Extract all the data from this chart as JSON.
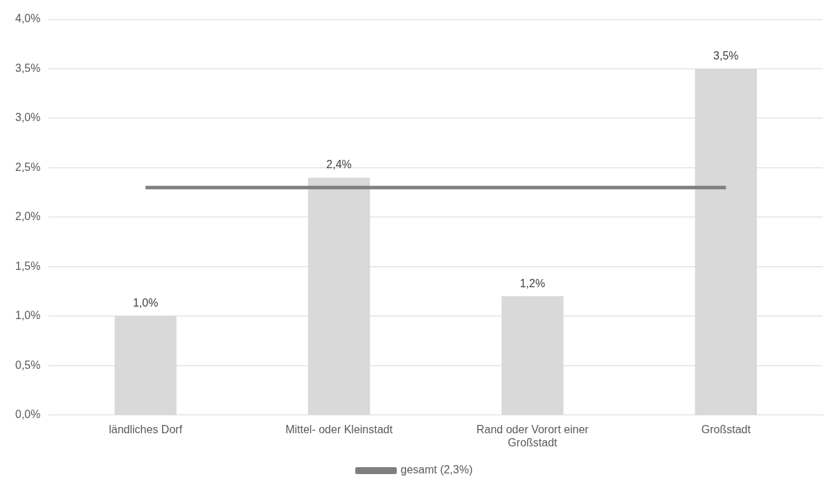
{
  "chart_data": {
    "type": "bar",
    "categories": [
      "ländliches Dorf",
      "Mittel- oder Kleinstadt",
      "Rand oder Vorort einer Großstadt",
      "Großstadt"
    ],
    "series": [
      {
        "color": "#d9d9d9",
        "values": [
          1.0,
          2.4,
          1.2,
          3.5
        ],
        "value_labels": [
          "1,0%",
          "2,4%",
          "1,2%",
          "3,5%"
        ]
      },
      {
        "type": "line",
        "name": "gesamt (2,3%)",
        "color": "#7f7f7f",
        "values": [
          2.3,
          2.3,
          2.3,
          2.3
        ]
      }
    ],
    "ylim": [
      0,
      4
    ],
    "yticks": [
      {
        "value": 0,
        "label": "0,0%"
      },
      {
        "value": 0.5,
        "label": "0,5%"
      },
      {
        "value": 1,
        "label": "1,0%"
      },
      {
        "value": 1.5,
        "label": "1,5%"
      },
      {
        "value": 2,
        "label": "2,0%"
      },
      {
        "value": 2.5,
        "label": "2,5%"
      },
      {
        "value": 3,
        "label": "3,0%"
      },
      {
        "value": 3.5,
        "label": "3,5%"
      },
      {
        "value": 4,
        "label": "4,0%"
      }
    ],
    "grid": "y",
    "legend": "bottom",
    "marker": "none"
  }
}
